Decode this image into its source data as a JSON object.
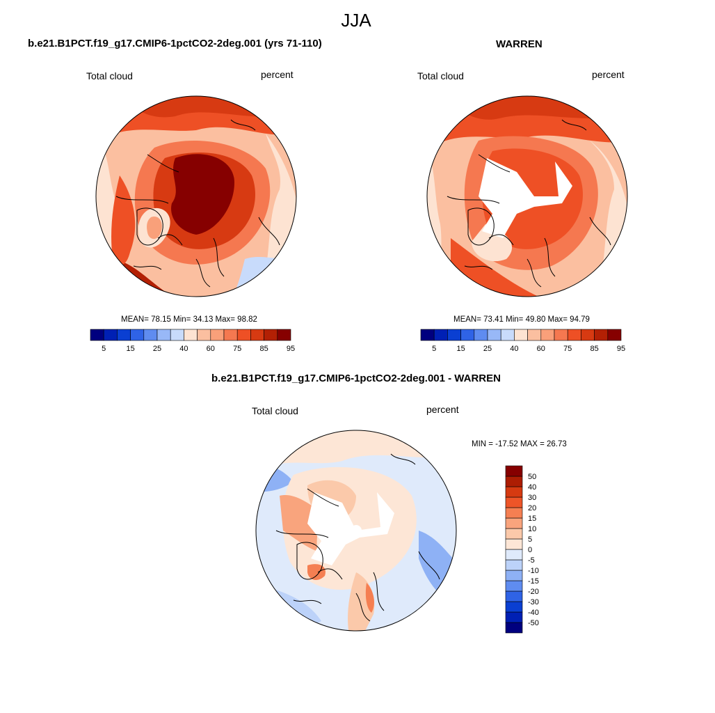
{
  "title": "JJA",
  "colors": {
    "abs": [
      "#00007f",
      "#0020b4",
      "#0a3fd2",
      "#2f63e6",
      "#5f8cf0",
      "#98b8f7",
      "#c8dbfb",
      "#fde3d2",
      "#fbbfa0",
      "#f9a07a",
      "#f57850",
      "#ee5025",
      "#d73a12",
      "#b32004",
      "#860000"
    ],
    "diff": [
      "#00007f",
      "#0020b4",
      "#0a3fd2",
      "#2f63e6",
      "#5f8cf0",
      "#8eb1f5",
      "#bcd2f9",
      "#dfeafb",
      "#fde6d6",
      "#fbc9aa",
      "#f9a47d",
      "#f57f52",
      "#ee5528",
      "#d63a11",
      "#ad1d03",
      "#860000"
    ]
  },
  "panel_left": {
    "title": "b.e21.B1PCT.f19_g17.CMIP6-1pctCO2-2deg.001 (yrs 71-110)",
    "var_label": "Total cloud",
    "units": "percent",
    "stats": "MEAN=  78.15  Min=  34.13  Max=  98.82"
  },
  "panel_right": {
    "title": "WARREN",
    "var_label": "Total cloud",
    "units": "percent",
    "stats": "MEAN=  73.41  Min=  49.80  Max=  94.79"
  },
  "panel_diff": {
    "title": "b.e21.B1PCT.f19_g17.CMIP6-1pctCO2-2deg.001 - WARREN",
    "var_label": "Total cloud",
    "units": "percent",
    "stats": "MIN = -17.52 MAX =  26.73"
  },
  "chart_data": [
    {
      "type": "heatmap",
      "projection": "north polar stereographic",
      "title": "b.e21.B1PCT.f19_g17.CMIP6-1pctCO2-2deg.001 (yrs 71-110)",
      "variable": "Total cloud",
      "units": "percent",
      "mean": 78.15,
      "min": 34.13,
      "max": 98.82,
      "colorbar_ticks": [
        "5",
        "15",
        "25",
        "40",
        "60",
        "75",
        "85",
        "95"
      ]
    },
    {
      "type": "heatmap",
      "projection": "north polar stereographic",
      "title": "WARREN",
      "variable": "Total cloud",
      "units": "percent",
      "mean": 73.41,
      "min": 49.8,
      "max": 94.79,
      "colorbar_ticks": [
        "5",
        "15",
        "25",
        "40",
        "60",
        "75",
        "85",
        "95"
      ]
    },
    {
      "type": "heatmap",
      "projection": "north polar stereographic",
      "title": "b.e21.B1PCT.f19_g17.CMIP6-1pctCO2-2deg.001 - WARREN",
      "variable": "Total cloud",
      "units": "percent",
      "min": -17.52,
      "max": 26.73,
      "colorbar_ticks": [
        "50",
        "40",
        "30",
        "20",
        "15",
        "10",
        "5",
        "0",
        "-5",
        "-10",
        "-15",
        "-20",
        "-30",
        "-40",
        "-50"
      ]
    }
  ]
}
